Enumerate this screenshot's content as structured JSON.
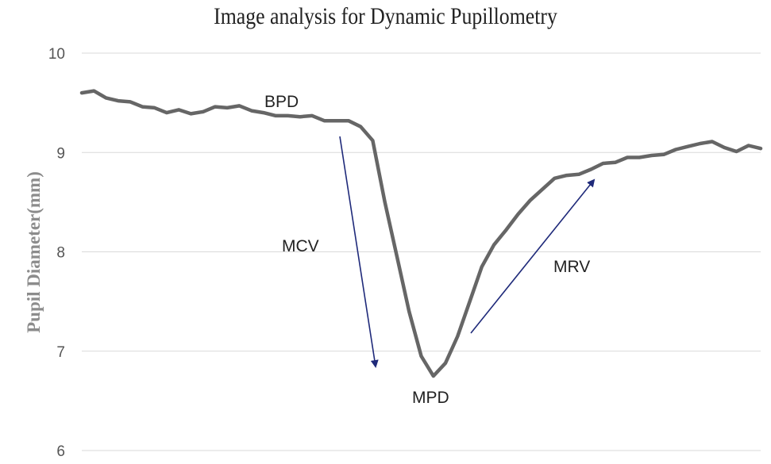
{
  "chart_data": {
    "type": "line",
    "title": "Image analysis for Dynamic Pupillometry",
    "ylabel": "Pupil Diameter(mm)",
    "xlabel": "",
    "ylim": [
      6,
      10
    ],
    "yticks": [
      "6",
      "7",
      "8",
      "9",
      "10"
    ],
    "grid": true,
    "series": [
      {
        "values": [
          9.6,
          9.62,
          9.55,
          9.52,
          9.51,
          9.46,
          9.45,
          9.4,
          9.43,
          9.39,
          9.41,
          9.46,
          9.45,
          9.47,
          9.42,
          9.4,
          9.37,
          9.37,
          9.36,
          9.37,
          9.32,
          9.32,
          9.32,
          9.26,
          9.12,
          8.5,
          7.95,
          7.4,
          6.95,
          6.75,
          6.88,
          7.15,
          7.5,
          7.85,
          8.07,
          8.22,
          8.38,
          8.52,
          8.63,
          8.74,
          8.77,
          8.78,
          8.83,
          8.89,
          8.9,
          8.95,
          8.95,
          8.97,
          8.98,
          9.03,
          9.06,
          9.09,
          9.11,
          9.05,
          9.01,
          9.07,
          9.04
        ]
      }
    ],
    "annotations": [
      {
        "text": "BPD"
      },
      {
        "text": "MCV"
      },
      {
        "text": "MPD"
      },
      {
        "text": "MRV"
      }
    ],
    "colors": {
      "line": "#666666",
      "arrow": "#1f2a7a",
      "grid": "#d9d9d9"
    }
  }
}
